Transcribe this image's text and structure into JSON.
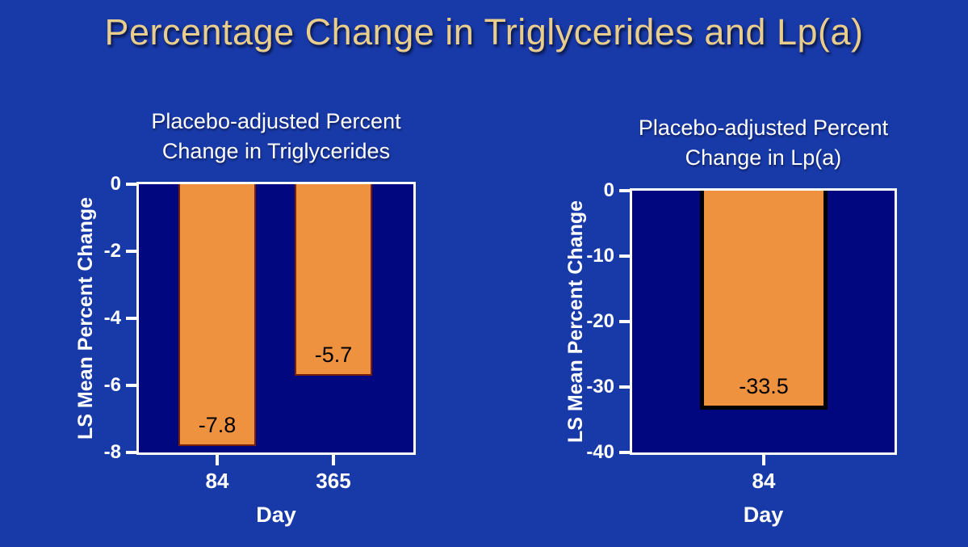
{
  "slide": {
    "title": "Percentage Change in Triglycerides and Lp(a)"
  },
  "colors": {
    "slide_background": "#1839A8",
    "plot_background": "#01077E",
    "bar_fill": "#EE9240",
    "bar_outline_left_chart": "#7A2008",
    "bar_outline_right_chart": "#000000",
    "frame": "#FFFFFF",
    "title_gold": "#E8CD8C",
    "text_white": "#FFFFFF",
    "bar_label_color": "#000000"
  },
  "chart_data": [
    {
      "type": "bar",
      "title": "Placebo-adjusted Percent Change in Triglycerides",
      "xlabel": "Day",
      "ylabel": "LS Mean Percent Change",
      "categories": [
        "84",
        "365"
      ],
      "values": [
        -7.8,
        -5.7
      ],
      "bar_labels": [
        "-7.8",
        "-5.7"
      ],
      "ylim": [
        -8,
        0
      ],
      "yticks": [
        0,
        -2,
        -4,
        -6,
        -8
      ],
      "grid": false,
      "legend": null
    },
    {
      "type": "bar",
      "title": "Placebo-adjusted Percent Change in Lp(a)",
      "xlabel": "Day",
      "ylabel": "LS Mean Percent Change",
      "categories": [
        "84"
      ],
      "values": [
        -33.5
      ],
      "bar_labels": [
        "-33.5"
      ],
      "ylim": [
        -40,
        0
      ],
      "yticks": [
        0,
        -10,
        -20,
        -30,
        -40
      ],
      "grid": false,
      "legend": null
    }
  ]
}
